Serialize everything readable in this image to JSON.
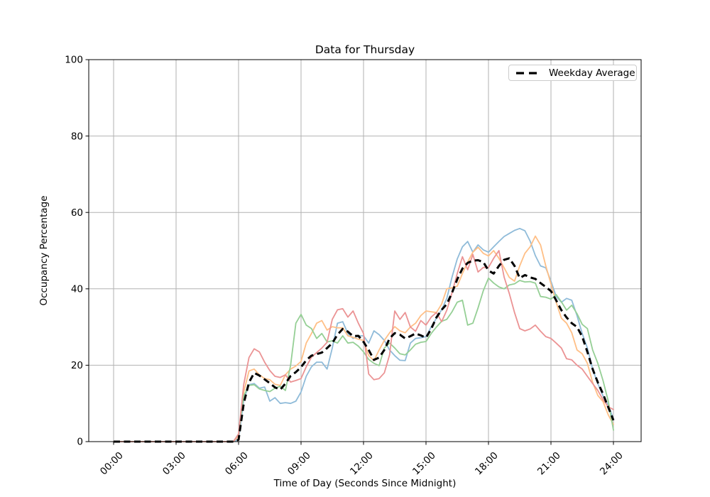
{
  "figure": {
    "background": "#ffffff"
  },
  "chart_data": {
    "type": "line",
    "title": "Data for Thursday",
    "xlabel": "Time of Day (Seconds Since Midnight)",
    "ylabel": "Occupancy Percentage",
    "grid": true,
    "grid_color": "#b2b2b2",
    "ylim": [
      0,
      100
    ],
    "y_ticks": [
      0,
      20,
      40,
      60,
      80,
      100
    ],
    "x_tick_hours": [
      0,
      3,
      6,
      9,
      12,
      15,
      18,
      21,
      24
    ],
    "x_tick_labels": [
      "00:00",
      "03:00",
      "06:00",
      "09:00",
      "12:00",
      "15:00",
      "18:00",
      "21:00",
      "24:00"
    ],
    "x_start_hour": 0,
    "x_step_hours": 0.25,
    "legend": {
      "label": "Weekday Average",
      "position": "upper right",
      "line_style": "dashed",
      "line_color": "#000000"
    },
    "series": [
      {
        "name": "weekday-series-blue",
        "color": "#8fbbd9",
        "values": [
          0,
          0,
          0,
          0,
          0,
          0,
          0,
          0,
          0,
          0,
          0,
          0,
          0,
          0,
          0,
          0,
          0,
          0,
          0,
          0,
          0,
          0,
          0,
          0,
          0.5,
          11,
          14.9,
          15.2,
          14,
          14.3,
          10.6,
          11.5,
          10,
          10.2,
          10,
          10.6,
          13,
          17.1,
          19.6,
          20.8,
          20.8,
          19,
          24.5,
          31,
          31.4,
          28.3,
          27,
          27.7,
          27.7,
          25.8,
          29,
          28,
          26.5,
          24,
          22.5,
          21.3,
          21.2,
          25.8,
          27,
          27.2,
          27.5,
          30,
          32.3,
          34.5,
          37.5,
          43.1,
          47.8,
          51,
          52.4,
          49.6,
          51.5,
          50.2,
          49.6,
          51,
          52.4,
          53.7,
          54.5,
          55.3,
          55.8,
          55.2,
          52.5,
          48.7,
          46,
          45.5,
          42,
          38,
          36.5,
          37.5,
          37,
          33,
          28.3,
          24.5,
          19,
          15.2,
          12,
          9.5,
          6
        ]
      },
      {
        "name": "weekday-series-orange",
        "color": "#ffbf86",
        "values": [
          0,
          0,
          0,
          0,
          0,
          0,
          0,
          0,
          0,
          0,
          0,
          0,
          0,
          0,
          0,
          0,
          0,
          0,
          0,
          0,
          0,
          0,
          0,
          0,
          1.5,
          13,
          18.5,
          19,
          17.5,
          16.5,
          16.2,
          15,
          14.7,
          17.5,
          19,
          19.8,
          21,
          25.8,
          28.3,
          31,
          31.7,
          29.2,
          30.1,
          29.8,
          29.8,
          27.7,
          27.3,
          26.8,
          26.5,
          22.5,
          21.2,
          24,
          26.5,
          28.5,
          30.1,
          29,
          28.5,
          30,
          31,
          33,
          34.2,
          34,
          33.8,
          36,
          40,
          40.3,
          40.7,
          44,
          47,
          49.6,
          50.9,
          49.3,
          48.6,
          50,
          48,
          45.5,
          43,
          42,
          46,
          49.3,
          51,
          53.8,
          51.5,
          46,
          41.3,
          36.5,
          32.3,
          31,
          28.5,
          24,
          23,
          20.5,
          15.5,
          12.1,
          10.5,
          7,
          4.5
        ]
      },
      {
        "name": "weekday-series-green",
        "color": "#95cf95",
        "values": [
          0,
          0,
          0,
          0,
          0,
          0,
          0,
          0,
          0,
          0,
          0,
          0,
          0,
          0,
          0,
          0,
          0,
          0,
          0,
          0,
          0,
          0,
          0,
          0,
          2,
          12,
          14.7,
          14.9,
          13.8,
          13.4,
          13.1,
          14,
          14.5,
          13.4,
          20,
          31,
          33.3,
          30.5,
          29.6,
          27,
          28.3,
          26.1,
          26.4,
          25.8,
          27.7,
          25.8,
          26,
          25,
          23.5,
          21.5,
          20.5,
          19.9,
          24.5,
          25.8,
          24.5,
          23,
          22.7,
          24,
          25.5,
          26,
          26.2,
          28.3,
          30,
          31.5,
          32,
          34,
          36.5,
          37,
          30.5,
          31,
          35,
          39.5,
          42.8,
          41.5,
          40.5,
          40,
          41,
          41.3,
          42.2,
          41.8,
          41.9,
          41.5,
          38,
          37.8,
          37.3,
          38.5,
          36.6,
          34.4,
          35.7,
          33.5,
          30.7,
          29.6,
          24,
          20.5,
          16,
          10.6,
          3
        ]
      },
      {
        "name": "weekday-series-red",
        "color": "#eb9394",
        "values": [
          0,
          0,
          0,
          0,
          0,
          0,
          0,
          0,
          0,
          0,
          0,
          0,
          0,
          0,
          0,
          0,
          0,
          0,
          0,
          0,
          0,
          0,
          0,
          0,
          2,
          15,
          22,
          24.3,
          23.5,
          20.8,
          18.6,
          17.1,
          16.8,
          17.5,
          15.6,
          16,
          16.5,
          19.6,
          22.1,
          23.3,
          24.5,
          26,
          32,
          34.5,
          34.8,
          32.6,
          34.2,
          31,
          28.3,
          17.7,
          16.2,
          16.5,
          18,
          22.7,
          34.2,
          32,
          33.8,
          30,
          28.9,
          31.7,
          30.5,
          32.6,
          33.8,
          31.4,
          34.4,
          39,
          44,
          48.4,
          45,
          49,
          44.4,
          45.6,
          45.6,
          48,
          50,
          43.1,
          38.8,
          33.8,
          29.6,
          29,
          29.5,
          30.5,
          28.9,
          27.5,
          27,
          25.8,
          24.5,
          21.7,
          21.4,
          20,
          19,
          17.1,
          15.2,
          13.4,
          11,
          9.1,
          8.4
        ]
      }
    ],
    "average": {
      "name": "Weekday Average",
      "color": "#000000",
      "dashed": true,
      "values": [
        0,
        0,
        0,
        0,
        0,
        0,
        0,
        0,
        0,
        0,
        0,
        0,
        0,
        0,
        0,
        0,
        0,
        0,
        0,
        0,
        0,
        0,
        0,
        0,
        0.5,
        10,
        15.5,
        18,
        17.3,
        16.3,
        15.3,
        14.2,
        13.6,
        15.2,
        17.2,
        18.2,
        19.5,
        21.3,
        22.5,
        22.9,
        23.3,
        24.5,
        25.8,
        28,
        29.5,
        28.8,
        27.6,
        27.7,
        26.1,
        24,
        21.4,
        22,
        24,
        27,
        28.4,
        28,
        27,
        27.6,
        28.3,
        27.8,
        27.2,
        29.5,
        32.5,
        34.5,
        36,
        39,
        42.5,
        45.3,
        46.8,
        47.4,
        47.5,
        47,
        44.8,
        44,
        46,
        47.6,
        48,
        46,
        42.8,
        43.6,
        43,
        42.6,
        41.5,
        40.5,
        39.4,
        37,
        34.4,
        32.5,
        31,
        30,
        27.5,
        23.5,
        19,
        15.5,
        12.5,
        9,
        5.6
      ]
    }
  }
}
